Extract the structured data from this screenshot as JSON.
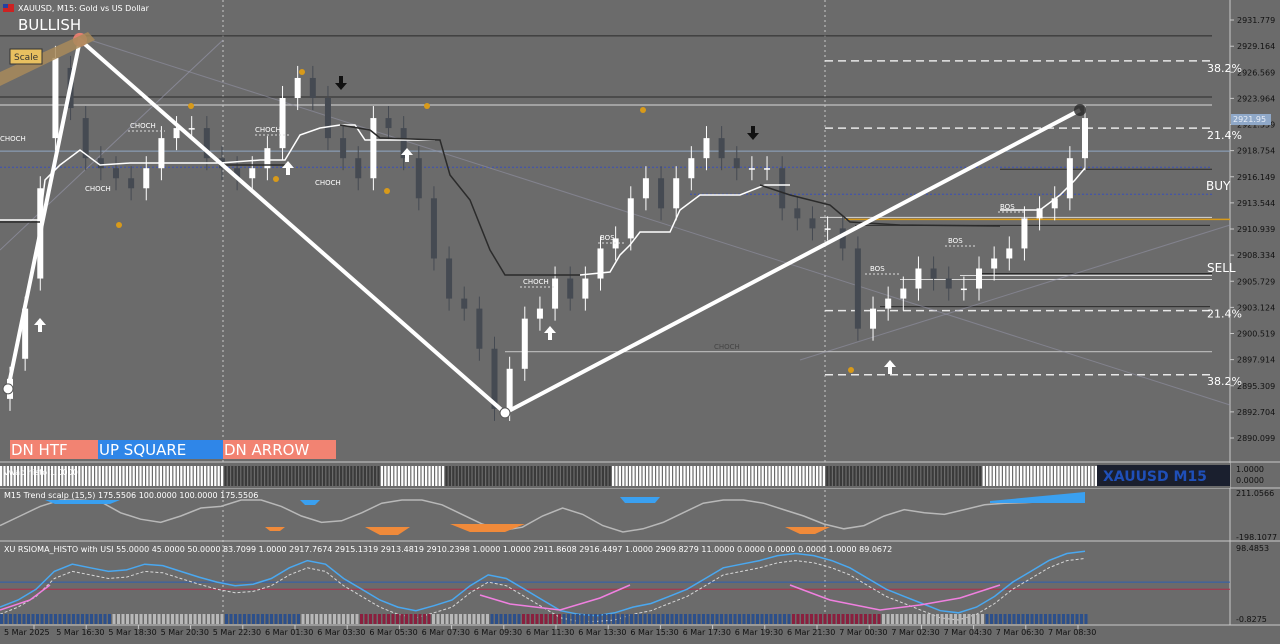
{
  "window": {
    "title": "XAUUSD, M15:  Gold vs US Dollar",
    "flag_icon": "flag-icon"
  },
  "overlays": {
    "bullish": "BULLISH",
    "scale": "Scale",
    "symbol_badge": "XAUUSD M15",
    "buy": "BUY",
    "sell": "SELL",
    "price_tag": "2921.95"
  },
  "fib_labels": [
    {
      "text": "38.2%",
      "price": 2927.0
    },
    {
      "text": "21.4%",
      "price": 2920.3
    },
    {
      "text": "21.4%",
      "price": 2902.5
    },
    {
      "text": "38.2%",
      "price": 2895.8
    }
  ],
  "status_boxes": [
    {
      "label": "DN HTF",
      "color": "#f28372"
    },
    {
      "label": "UP SQUARE",
      "color": "#2f86e8"
    },
    {
      "label": "DN ARROW",
      "color": "#f28372"
    }
  ],
  "colors": {
    "background": "#6b6b6b",
    "bull_candle": "#ffffff",
    "bear_candle": "#454a52",
    "trend_line": "#ffffff",
    "pivot_dot": "#d89a1a",
    "blue_line": "#3a4fb8",
    "orange_level": "#d89a1a",
    "badge_bg": "#1a1f2e",
    "badge_text": "#1f4fb8"
  },
  "chart_data": [
    {
      "type": "candlestick",
      "symbol": "XAUUSD",
      "timeframe": "M15",
      "ylim": [
        2888.0,
        2933.5
      ],
      "y_ticks": [
        "2931.779",
        "2929.164",
        "2926.569",
        "2923.964",
        "2921.359",
        "2918.754",
        "2916.149",
        "2913.544",
        "2910.939",
        "2908.334",
        "2905.729",
        "2903.124",
        "2900.519",
        "2897.914",
        "2895.309",
        "2892.704",
        "2890.099"
      ],
      "x_ticks": [
        "5 Mar 2025",
        "5 Mar 16:30",
        "5 Mar 18:30",
        "5 Mar 20:30",
        "5 Mar 22:30",
        "6 Mar 01:30",
        "6 Mar 03:30",
        "6 Mar 05:30",
        "6 Mar 07:30",
        "6 Mar 09:30",
        "6 Mar 11:30",
        "6 Mar 13:30",
        "6 Mar 15:30",
        "6 Mar 17:30",
        "6 Mar 19:30",
        "6 Mar 21:30",
        "7 Mar 00:30",
        "7 Mar 02:30",
        "7 Mar 04:30",
        "7 Mar 06:30",
        "7 Mar 08:30"
      ],
      "zigzag": [
        2895.0,
        2929.8,
        2892.6,
        2922.8
      ],
      "structure_labels": [
        "CHOCH",
        "CHOCH",
        "CHOCH",
        "CHOCH",
        "CHOCH",
        "CHOCH",
        "BOS",
        "BOS",
        "BOS",
        "BOS",
        "CHOCH"
      ],
      "close": [
        2896,
        2903,
        2915,
        2928,
        2923,
        2918,
        2917,
        2916,
        2915,
        2917,
        2920,
        2921,
        2921,
        2918,
        2917,
        2916,
        2917,
        2919,
        2924,
        2926,
        2924,
        2920,
        2918,
        2916,
        2922,
        2921,
        2918,
        2914,
        2908,
        2904,
        2903,
        2899,
        2893,
        2897,
        2902,
        2903,
        2906,
        2904,
        2906,
        2909,
        2910,
        2914,
        2916,
        2913,
        2916,
        2918,
        2920,
        2918,
        2917,
        2917,
        2917,
        2913,
        2912,
        2911,
        2911,
        2909,
        2901,
        2903,
        2904,
        2905,
        2907,
        2906,
        2905,
        2905,
        2907,
        2908,
        2909,
        2912,
        2913,
        2914,
        2918,
        2922
      ],
      "open": [
        2894,
        2898,
        2906,
        2920,
        2927,
        2922,
        2918,
        2917,
        2916,
        2915,
        2917,
        2920,
        2921,
        2921,
        2918,
        2917,
        2916,
        2917,
        2919,
        2924,
        2926,
        2924,
        2920,
        2918,
        2916,
        2922,
        2921,
        2918,
        2914,
        2908,
        2904,
        2903,
        2899,
        2893,
        2897,
        2902,
        2903,
        2906,
        2904,
        2906,
        2909,
        2910,
        2914,
        2916,
        2913,
        2916,
        2918,
        2920,
        2918,
        2917,
        2917,
        2917,
        2913,
        2912,
        2911,
        2911,
        2909,
        2901,
        2903,
        2904,
        2905,
        2907,
        2906,
        2905,
        2905,
        2907,
        2908,
        2909,
        2912,
        2913,
        2914,
        2918
      ]
    },
    {
      "type": "histogram",
      "title": "vwap histo 1.0000",
      "y_ticks": [
        "1.0000",
        "0.0000"
      ]
    },
    {
      "type": "line",
      "title": "M15 Trend scalp (15,5) 175.5506 100.0000 100.0000 175.5506",
      "y_ticks": [
        "211.0566",
        "-198.1077"
      ]
    },
    {
      "type": "line",
      "title": "XU RSIOMA_HISTO with USI 55.0000 45.0000 50.0000 83.7099 1.0000 2917.7674 2915.1319 2913.4819 2910.2398 1.0000 1.0000 2911.8608 2916.4497 1.0000 2909.8279 11.0000 0.0000 0.0000 0.0000 1.0000 89.0672",
      "y_ticks": [
        "98.4853",
        "-0.8275"
      ],
      "levels": [
        55.0,
        45.0
      ]
    }
  ]
}
